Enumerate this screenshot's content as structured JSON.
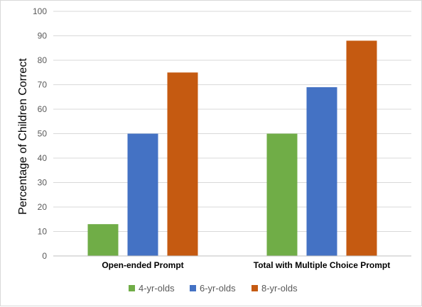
{
  "chart_data": {
    "type": "bar",
    "categories": [
      "Open-ended Prompt",
      "Total with  Multiple Choice Prompt"
    ],
    "series": [
      {
        "name": "4-yr-olds",
        "values": [
          13,
          50
        ],
        "color": "#70ad47"
      },
      {
        "name": "6-yr-olds",
        "values": [
          50,
          69
        ],
        "color": "#4472c4"
      },
      {
        "name": "8-yr-olds",
        "values": [
          75,
          88
        ],
        "color": "#c55a11"
      }
    ],
    "title": "",
    "xlabel": "",
    "ylabel": "Percentage of Children Correct",
    "ylim": [
      0,
      100
    ],
    "yticks": [
      "0",
      "10",
      "20",
      "30",
      "40",
      "50",
      "60",
      "70",
      "80",
      "90",
      "100"
    ],
    "grid": true,
    "legend_position": "bottom"
  }
}
